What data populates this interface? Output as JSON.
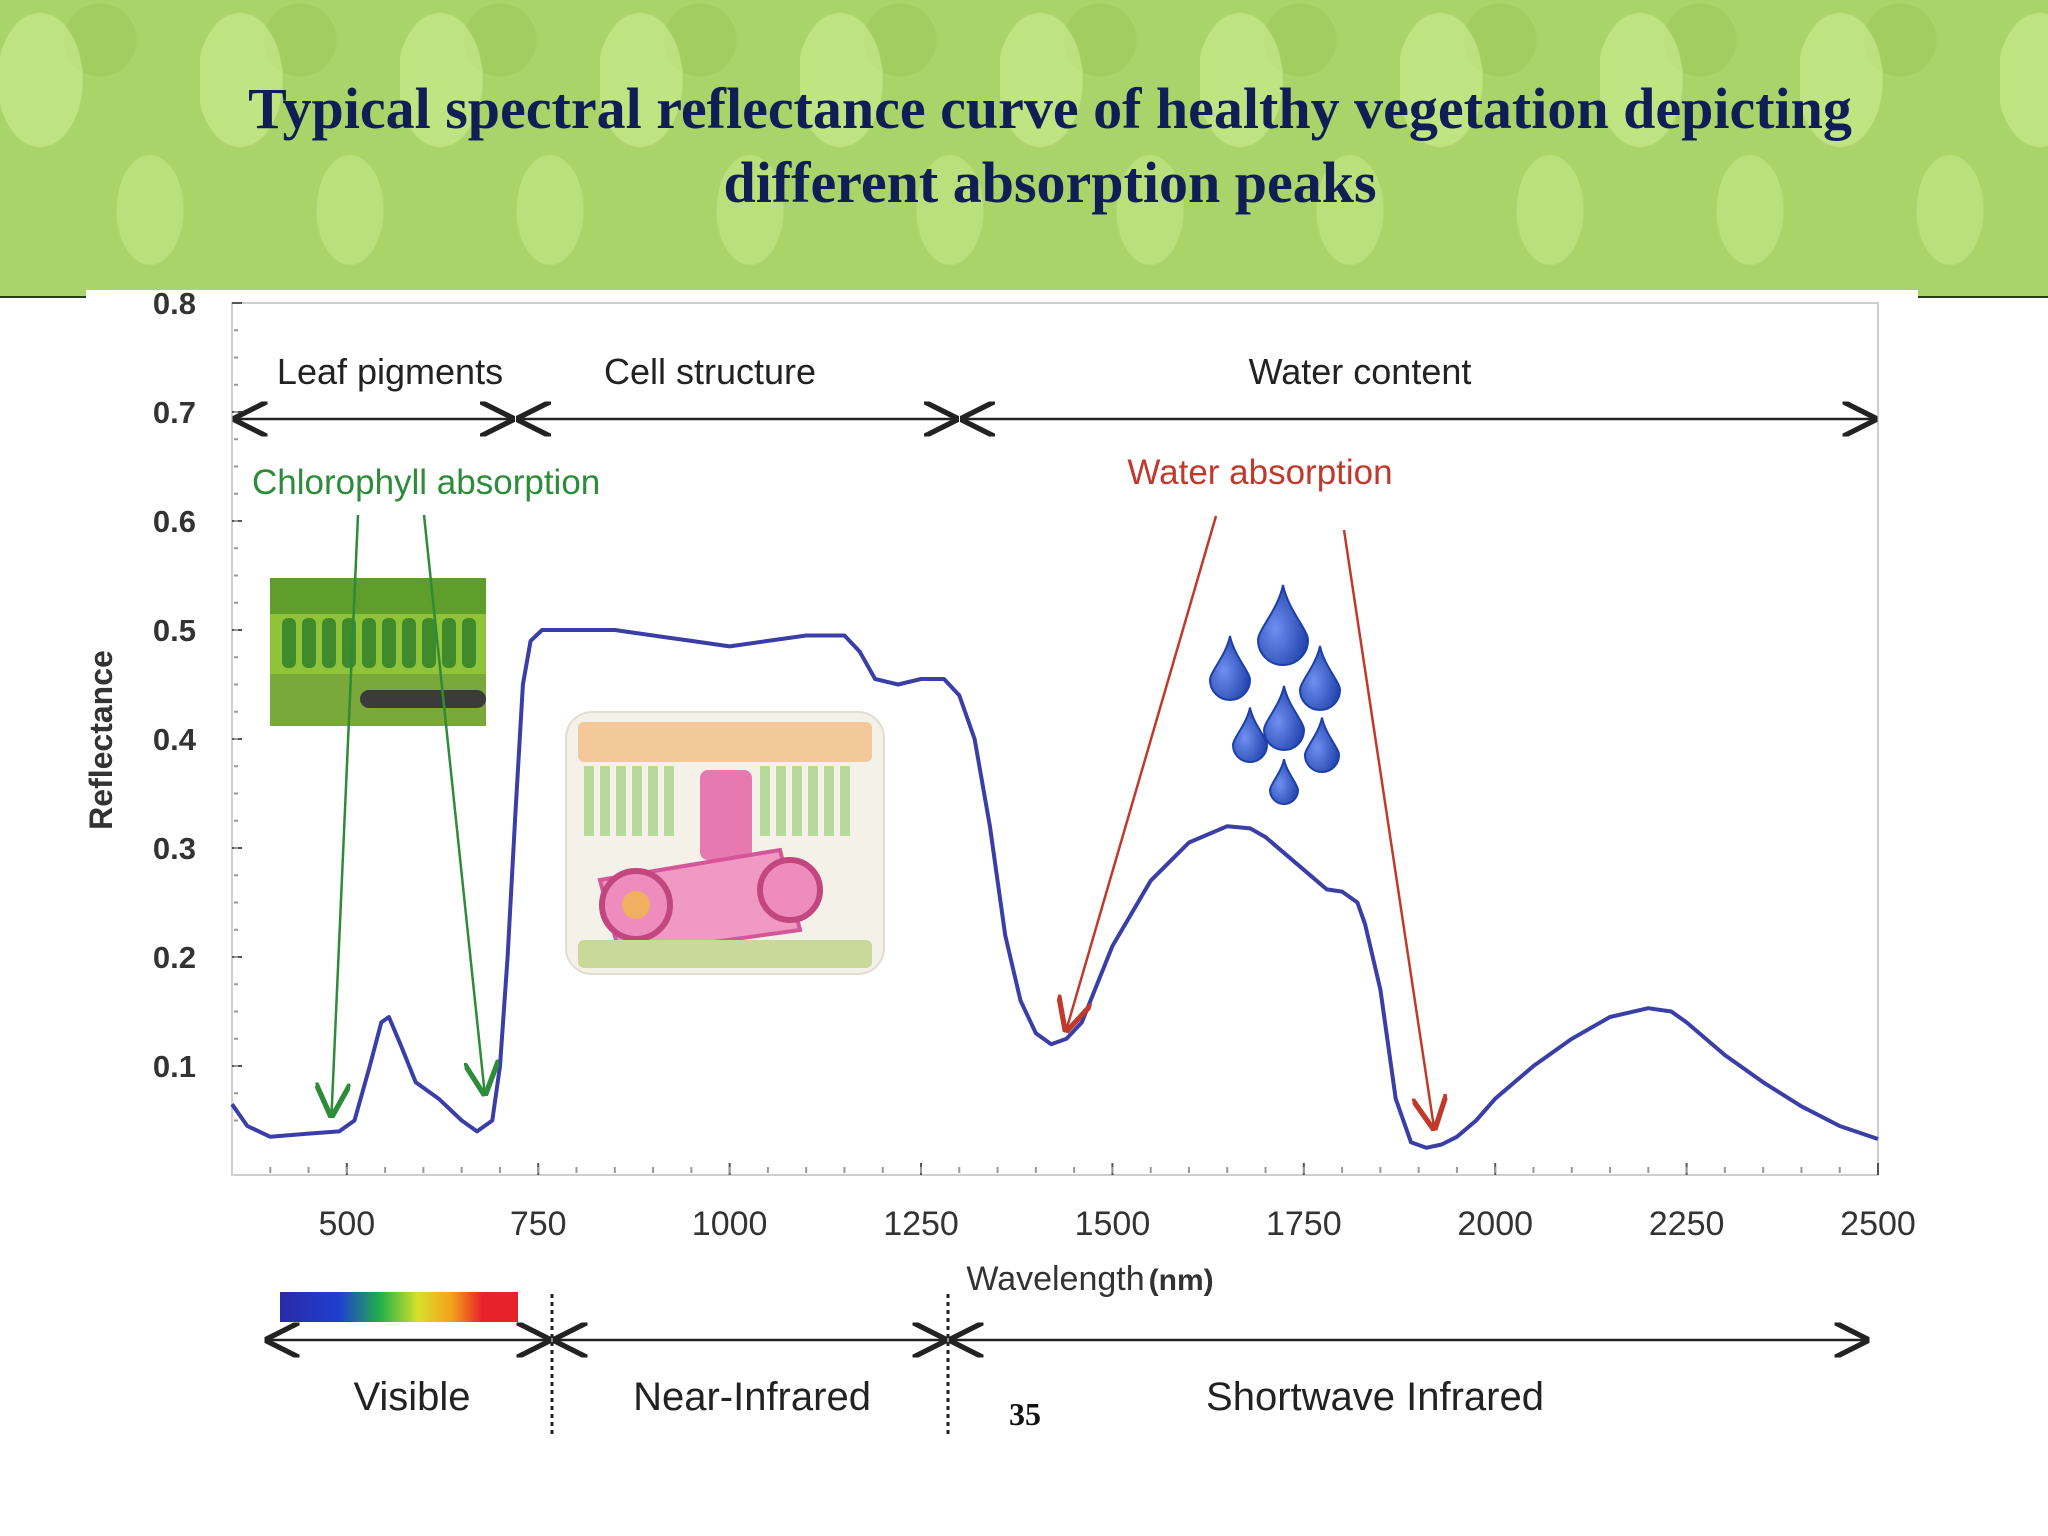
{
  "slide": {
    "title_line1": "Typical spectral reflectance curve of healthy vegetation depicting",
    "title_line2": "different absorption peaks",
    "page_number": "35"
  },
  "colors": {
    "banner": "#a9d46a",
    "title": "#0f1f55",
    "curve": "#3a3ea6",
    "chlorophyll": "#2e8b3a",
    "water": "#c0392b",
    "droplet": "#1c3fa8"
  },
  "chart_data": {
    "type": "line",
    "xlabel": "Wavelength",
    "xlabel_unit": "(nm)",
    "ylabel": "Reflectance",
    "xlim": [
      350,
      2500
    ],
    "ylim": [
      0,
      0.8
    ],
    "x_ticks": [
      "500",
      "750",
      "1000",
      "1250",
      "1500",
      "1750",
      "2000",
      "2250",
      "2500"
    ],
    "y_ticks": [
      "0.1",
      "0.2",
      "0.3",
      "0.4",
      "0.5",
      "0.6",
      "0.7",
      "0.8"
    ],
    "grid": false,
    "series": [
      {
        "x": [
          350,
          370,
          400,
          450,
          490,
          510,
          530,
          545,
          555,
          570,
          590,
          620,
          650,
          670,
          690,
          700,
          710,
          720,
          730,
          740,
          755,
          775,
          800,
          850,
          900,
          950,
          1000,
          1050,
          1100,
          1150,
          1170,
          1190,
          1220,
          1250,
          1280,
          1300,
          1320,
          1340,
          1360,
          1380,
          1400,
          1420,
          1440,
          1460,
          1480,
          1500,
          1550,
          1600,
          1650,
          1680,
          1700,
          1750,
          1780,
          1800,
          1820,
          1830,
          1850,
          1870,
          1890,
          1910,
          1930,
          1950,
          1975,
          2000,
          2050,
          2100,
          2150,
          2200,
          2230,
          2250,
          2300,
          2350,
          2400,
          2450,
          2500
        ],
        "y": [
          0.065,
          0.045,
          0.035,
          0.038,
          0.04,
          0.05,
          0.1,
          0.14,
          0.145,
          0.12,
          0.085,
          0.07,
          0.05,
          0.04,
          0.05,
          0.1,
          0.2,
          0.33,
          0.45,
          0.49,
          0.5,
          0.5,
          0.5,
          0.5,
          0.495,
          0.49,
          0.485,
          0.49,
          0.495,
          0.495,
          0.48,
          0.455,
          0.45,
          0.455,
          0.455,
          0.44,
          0.4,
          0.32,
          0.22,
          0.16,
          0.13,
          0.12,
          0.125,
          0.14,
          0.175,
          0.21,
          0.27,
          0.305,
          0.32,
          0.318,
          0.31,
          0.28,
          0.262,
          0.26,
          0.25,
          0.23,
          0.17,
          0.07,
          0.03,
          0.025,
          0.028,
          0.035,
          0.05,
          0.07,
          0.1,
          0.125,
          0.145,
          0.153,
          0.15,
          0.14,
          0.11,
          0.085,
          0.063,
          0.045,
          0.033
        ]
      }
    ],
    "annotations": {
      "region_top": [
        {
          "label": "Leaf pigments",
          "from": 350,
          "to": 720
        },
        {
          "label": "Cell structure",
          "from": 720,
          "to": 1300
        },
        {
          "label": "Water content",
          "from": 1300,
          "to": 2500
        }
      ],
      "chlorophyll_label": "Chlorophyll absorption",
      "chlorophyll_targets": [
        {
          "x": 480,
          "y": 0.05
        },
        {
          "x": 680,
          "y": 0.07
        }
      ],
      "water_label": "Water absorption",
      "water_targets": [
        {
          "x": 1440,
          "y": 0.13
        },
        {
          "x": 1920,
          "y": 0.04
        }
      ],
      "region_bottom": [
        {
          "label": "Visible",
          "from": 400,
          "to": 700
        },
        {
          "label": "Near-Infrared",
          "from": 700,
          "to": 1300
        },
        {
          "label": "Shortwave Infrared",
          "from": 1300,
          "to": 2500
        }
      ]
    }
  }
}
